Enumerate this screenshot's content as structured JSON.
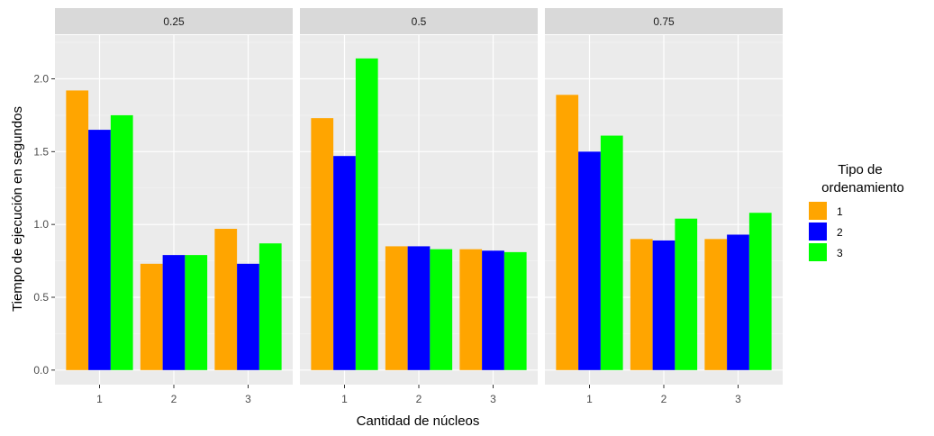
{
  "chart_data": {
    "type": "bar",
    "facet_variable_values": [
      "0.25",
      "0.5",
      "0.75"
    ],
    "categories": [
      "1",
      "2",
      "3"
    ],
    "xlabel": "Cantidad de núcleos",
    "ylabel": "Tiempo de ejecución en segundos",
    "ylim": [
      -0.1,
      2.3
    ],
    "yticks": [
      "0.0",
      "0.5",
      "1.0",
      "1.5",
      "2.0"
    ],
    "grid": true,
    "legend": {
      "title_line1": "Tipo de",
      "title_line2": "ordenamiento",
      "placement": "right",
      "entries": [
        "1",
        "2",
        "3"
      ]
    },
    "colors": {
      "1": "#FFA500",
      "2": "#0000FF",
      "3": "#00FF00"
    },
    "panels": [
      {
        "facet": "0.25",
        "series": [
          {
            "name": "1",
            "values": [
              1.92,
              0.73,
              0.97
            ]
          },
          {
            "name": "2",
            "values": [
              1.65,
              0.79,
              0.73
            ]
          },
          {
            "name": "3",
            "values": [
              1.75,
              0.79,
              0.87
            ]
          }
        ]
      },
      {
        "facet": "0.5",
        "series": [
          {
            "name": "1",
            "values": [
              1.73,
              0.85,
              0.83
            ]
          },
          {
            "name": "2",
            "values": [
              1.47,
              0.85,
              0.82
            ]
          },
          {
            "name": "3",
            "values": [
              2.14,
              0.83,
              0.81
            ]
          }
        ]
      },
      {
        "facet": "0.75",
        "series": [
          {
            "name": "1",
            "values": [
              1.89,
              0.9,
              0.9
            ]
          },
          {
            "name": "2",
            "values": [
              1.5,
              0.89,
              0.93
            ]
          },
          {
            "name": "3",
            "values": [
              1.61,
              1.04,
              1.08
            ]
          }
        ]
      }
    ]
  }
}
